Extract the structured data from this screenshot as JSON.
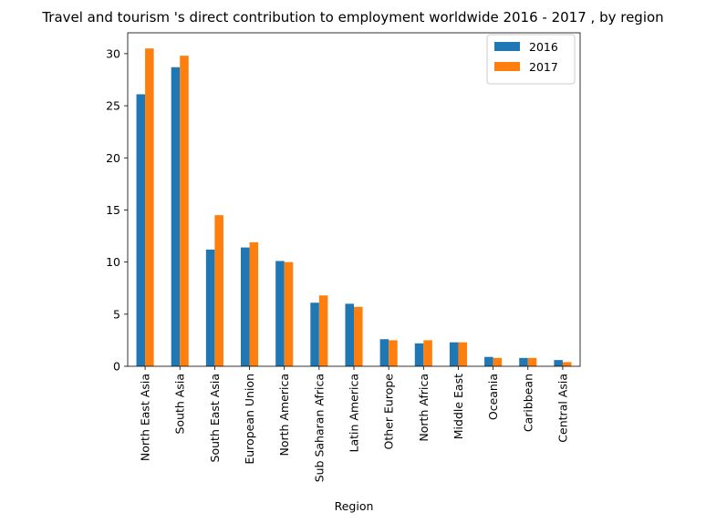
{
  "chart_data": {
    "type": "bar",
    "title": "Travel and tourism 's direct contribution to employment worldwide 2016 - 2017 , by region",
    "xlabel": "Region",
    "ylabel": "",
    "categories": [
      "North East Asia",
      "South Asia",
      "South East Asia",
      "European Union",
      "North America",
      "Sub Saharan Africa",
      "Latin America",
      "Other Europe",
      "North Africa",
      "Middle East",
      "Oceania",
      "Caribbean",
      "Central Asia"
    ],
    "series": [
      {
        "name": "2016",
        "color": "#1f77b4",
        "values": [
          26.1,
          28.7,
          11.2,
          11.4,
          10.1,
          6.1,
          6.0,
          2.6,
          2.2,
          2.3,
          0.9,
          0.8,
          0.6
        ]
      },
      {
        "name": "2017",
        "color": "#ff7f0e",
        "values": [
          30.5,
          29.8,
          14.5,
          11.9,
          10.0,
          6.8,
          5.7,
          2.5,
          2.5,
          2.3,
          0.8,
          0.8,
          0.4
        ]
      }
    ],
    "ylim": [
      0,
      32
    ],
    "yticks": [
      0,
      5,
      10,
      15,
      20,
      25,
      30
    ],
    "grid": false,
    "legend_position": "top-right"
  }
}
